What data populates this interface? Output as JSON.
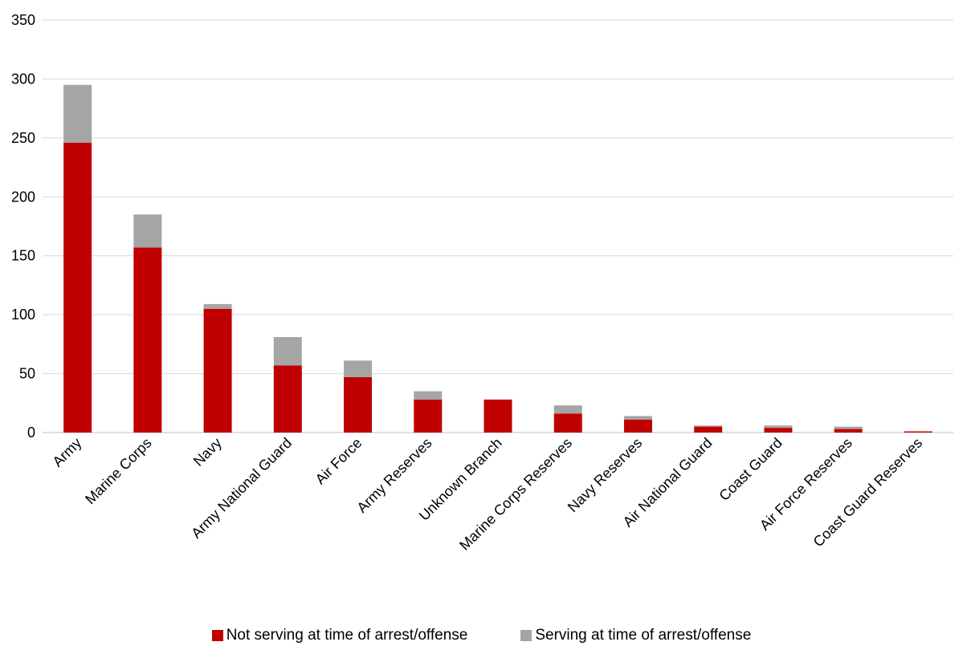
{
  "chart_data": {
    "type": "bar",
    "stacked": true,
    "title": "",
    "xlabel": "",
    "ylabel": "",
    "ylim": [
      0,
      350
    ],
    "yticks": [
      0,
      50,
      100,
      150,
      200,
      250,
      300,
      350
    ],
    "grid": true,
    "legend_position": "bottom",
    "categories": [
      "Army",
      "Marine Corps",
      "Navy",
      "Army National Guard",
      "Air Force",
      "Army Reserves",
      "Unknown Branch",
      "Marine Corps Reserves",
      "Navy Reserves",
      "Air National Guard",
      "Coast Guard",
      "Air Force Reserves",
      "Coast Guard Reserves"
    ],
    "series": [
      {
        "name": "Not serving at time of arrest/offense",
        "color": "#c00000",
        "values": [
          246,
          157,
          105,
          57,
          47,
          28,
          28,
          16,
          11,
          5,
          4,
          3,
          1
        ]
      },
      {
        "name": "Serving at time of arrest/offense",
        "color": "#a5a5a5",
        "values": [
          49,
          28,
          4,
          24,
          14,
          7,
          0,
          7,
          3,
          1,
          2,
          2,
          0
        ]
      }
    ]
  }
}
